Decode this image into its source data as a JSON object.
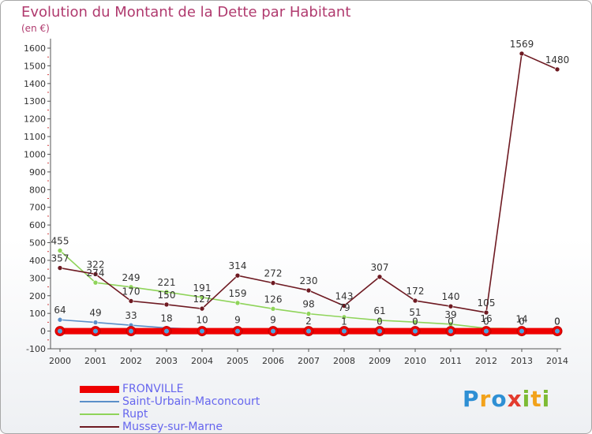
{
  "title": "Evolution du Montant de la Dette par Habitant",
  "unit": "(en €)",
  "logo": {
    "letters": [
      "P",
      "r",
      "o",
      "x",
      "i",
      "t",
      "i"
    ],
    "colors": [
      "#2e8fd4",
      "#f2a21b",
      "#2e8fd4",
      "#e33b2e",
      "#7dbb34",
      "#f2a21b",
      "#7dbb34"
    ]
  },
  "chart_data": {
    "type": "line",
    "title": "Evolution du Montant de la Dette par Habitant",
    "ylabel": "(en €)",
    "x": [
      "2000",
      "2001",
      "2002",
      "2003",
      "2004",
      "2005",
      "2006",
      "2007",
      "2008",
      "2009",
      "2010",
      "2011",
      "2012",
      "2013",
      "2014"
    ],
    "ylim": [
      -100,
      1600
    ],
    "yticks": [
      "1600",
      "1500",
      "1400",
      "1300",
      "1200",
      "1100",
      "1000",
      "900",
      "800",
      "700",
      "600",
      "500",
      "400",
      "300",
      "200",
      "100",
      "0",
      "-100"
    ],
    "ytick_values": [
      1600,
      1500,
      1400,
      1300,
      1200,
      1100,
      1000,
      900,
      800,
      700,
      600,
      500,
      400,
      300,
      200,
      100,
      0,
      -100
    ],
    "grid": false,
    "legend": "bottom-left",
    "series": [
      {
        "name": "FRONVILLE",
        "color": "#ee0000",
        "thick": true,
        "values": [
          0,
          0,
          0,
          0,
          0,
          0,
          0,
          0,
          0,
          0,
          0,
          0,
          0,
          0,
          0
        ],
        "labels": []
      },
      {
        "name": "Saint-Urbain-Maconcourt",
        "color": "#5b8fc9",
        "thick": false,
        "values": [
          64,
          49,
          33,
          18,
          10,
          9,
          9,
          2,
          1,
          0,
          0,
          0,
          0,
          0,
          0
        ],
        "labels": [
          "64",
          "49",
          "33",
          "18",
          "10",
          "9",
          "9",
          "2",
          "1",
          "0",
          "0",
          "0",
          "0",
          "0",
          "0"
        ]
      },
      {
        "name": "Rupt",
        "color": "#8fd45a",
        "thick": false,
        "values": [
          455,
          274,
          249,
          221,
          191,
          159,
          126,
          98,
          79,
          61,
          51,
          39,
          16,
          14,
          0
        ],
        "labels": [
          "455",
          "274",
          "249",
          "221",
          "191",
          "159",
          "126",
          "98",
          "79",
          "61",
          "51",
          "39",
          "16",
          "14",
          "0"
        ]
      },
      {
        "name": "Mussey-sur-Marne",
        "color": "#6e1a22",
        "thick": false,
        "values": [
          357,
          322,
          170,
          150,
          127,
          314,
          272,
          230,
          143,
          307,
          172,
          140,
          105,
          1569,
          1480
        ],
        "labels": [
          "357",
          "322",
          "170",
          "150",
          "127",
          "314",
          "272",
          "230",
          "143",
          "307",
          "172",
          "140",
          "105",
          "1569",
          "1480"
        ]
      }
    ]
  }
}
